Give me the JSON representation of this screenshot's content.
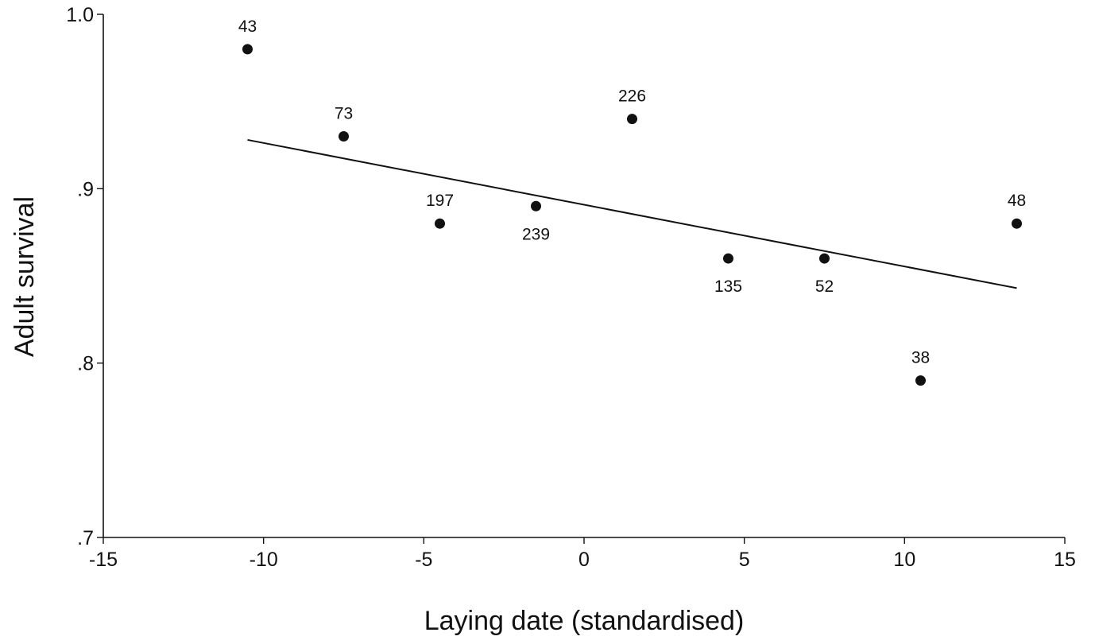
{
  "chart_data": {
    "type": "scatter",
    "xlabel": "Laying date (standardised)",
    "ylabel": "Adult survival",
    "xlim": [
      -15,
      15
    ],
    "ylim": [
      0.7,
      1.0
    ],
    "xticks": [
      -15,
      -10,
      -5,
      0,
      5,
      10,
      15
    ],
    "xtick_labels": [
      "-15",
      "-10",
      "-5",
      "0",
      "5",
      "10",
      "15"
    ],
    "yticks": [
      0.7,
      0.8,
      0.9,
      1.0
    ],
    "ytick_labels": [
      ".7",
      ".8",
      ".9",
      "1.0"
    ],
    "grid": false,
    "points": [
      {
        "x": -10.5,
        "y": 0.98,
        "label": "43",
        "label_pos": "above"
      },
      {
        "x": -7.5,
        "y": 0.93,
        "label": "73",
        "label_pos": "above"
      },
      {
        "x": -4.5,
        "y": 0.88,
        "label": "197",
        "label_pos": "above"
      },
      {
        "x": -1.5,
        "y": 0.89,
        "label": "239",
        "label_pos": "below"
      },
      {
        "x": 1.5,
        "y": 0.94,
        "label": "226",
        "label_pos": "above"
      },
      {
        "x": 4.5,
        "y": 0.86,
        "label": "135",
        "label_pos": "below"
      },
      {
        "x": 7.5,
        "y": 0.86,
        "label": "52",
        "label_pos": "below"
      },
      {
        "x": 10.5,
        "y": 0.79,
        "label": "38",
        "label_pos": "above"
      },
      {
        "x": 13.5,
        "y": 0.88,
        "label": "48",
        "label_pos": "above"
      }
    ],
    "trend_line": {
      "x": [
        -10.5,
        13.5
      ],
      "y": [
        0.928,
        0.843
      ]
    }
  }
}
